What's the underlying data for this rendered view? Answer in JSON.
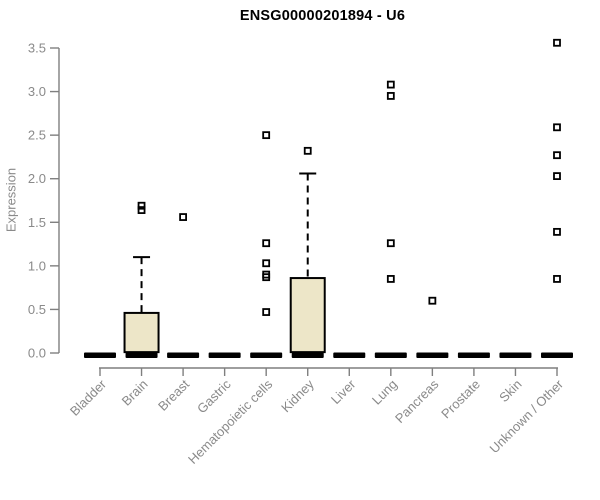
{
  "chart_data": {
    "type": "boxplot",
    "title": "ENSG00000201894 - U6",
    "ylabel": "Expression",
    "xlabel": "",
    "ylim": [
      0,
      3.5
    ],
    "y_ticks": [
      "0.0",
      "0.5",
      "1.0",
      "1.5",
      "2.0",
      "2.5",
      "3.0",
      "3.5"
    ],
    "grid": false,
    "legend": "none",
    "categories": [
      "Bladder",
      "Brain",
      "Breast",
      "Gastric",
      "Hematopoietic cells",
      "Kidney",
      "Liver",
      "Lung",
      "Pancreas",
      "Prostate",
      "Skin",
      "Unknown / Other"
    ],
    "series": [
      {
        "category": "Bladder",
        "low": 0,
        "q1": 0,
        "median": 0,
        "q3": 0,
        "high": 0,
        "outliers": []
      },
      {
        "category": "Brain",
        "low": 0,
        "q1": 0.01,
        "median": 0,
        "q3": 0.46,
        "high": 1.1,
        "outliers": [
          1.64,
          1.69
        ]
      },
      {
        "category": "Breast",
        "low": 0,
        "q1": 0,
        "median": 0,
        "q3": 0,
        "high": 0,
        "outliers": [
          1.56
        ]
      },
      {
        "category": "Gastric",
        "low": 0,
        "q1": 0,
        "median": 0,
        "q3": 0,
        "high": 0,
        "outliers": []
      },
      {
        "category": "Hematopoietic cells",
        "low": 0,
        "q1": 0,
        "median": 0,
        "q3": 0,
        "high": 0,
        "outliers": [
          0.47,
          0.87,
          0.9,
          1.03,
          1.26,
          2.5
        ]
      },
      {
        "category": "Kidney",
        "low": 0,
        "q1": 0.01,
        "median": 0,
        "q3": 0.86,
        "high": 2.06,
        "outliers": [
          2.32
        ]
      },
      {
        "category": "Liver",
        "low": 0,
        "q1": 0,
        "median": 0,
        "q3": 0,
        "high": 0,
        "outliers": []
      },
      {
        "category": "Lung",
        "low": 0,
        "q1": 0,
        "median": 0,
        "q3": 0,
        "high": 0,
        "outliers": [
          0.85,
          1.26,
          2.95,
          3.08
        ]
      },
      {
        "category": "Pancreas",
        "low": 0,
        "q1": 0,
        "median": 0,
        "q3": 0,
        "high": 0,
        "outliers": [
          0.6
        ]
      },
      {
        "category": "Prostate",
        "low": 0,
        "q1": 0,
        "median": 0,
        "q3": 0,
        "high": 0,
        "outliers": []
      },
      {
        "category": "Skin",
        "low": 0,
        "q1": 0,
        "median": 0,
        "q3": 0,
        "high": 0,
        "outliers": []
      },
      {
        "category": "Unknown / Other",
        "low": 0,
        "q1": 0,
        "median": 0,
        "q3": 0,
        "high": 0,
        "outliers": [
          0.85,
          1.39,
          2.03,
          2.27,
          2.59,
          3.56
        ]
      }
    ],
    "colors": {
      "box_fill": "#EDE6C8",
      "box_stroke": "#000000",
      "median": "#000000",
      "whisker": "#000000",
      "outlier": "#000000",
      "axis": "#7f7f7f",
      "tick_label": "#8a8a8a",
      "title": "#000000",
      "background": "#ffffff"
    }
  }
}
